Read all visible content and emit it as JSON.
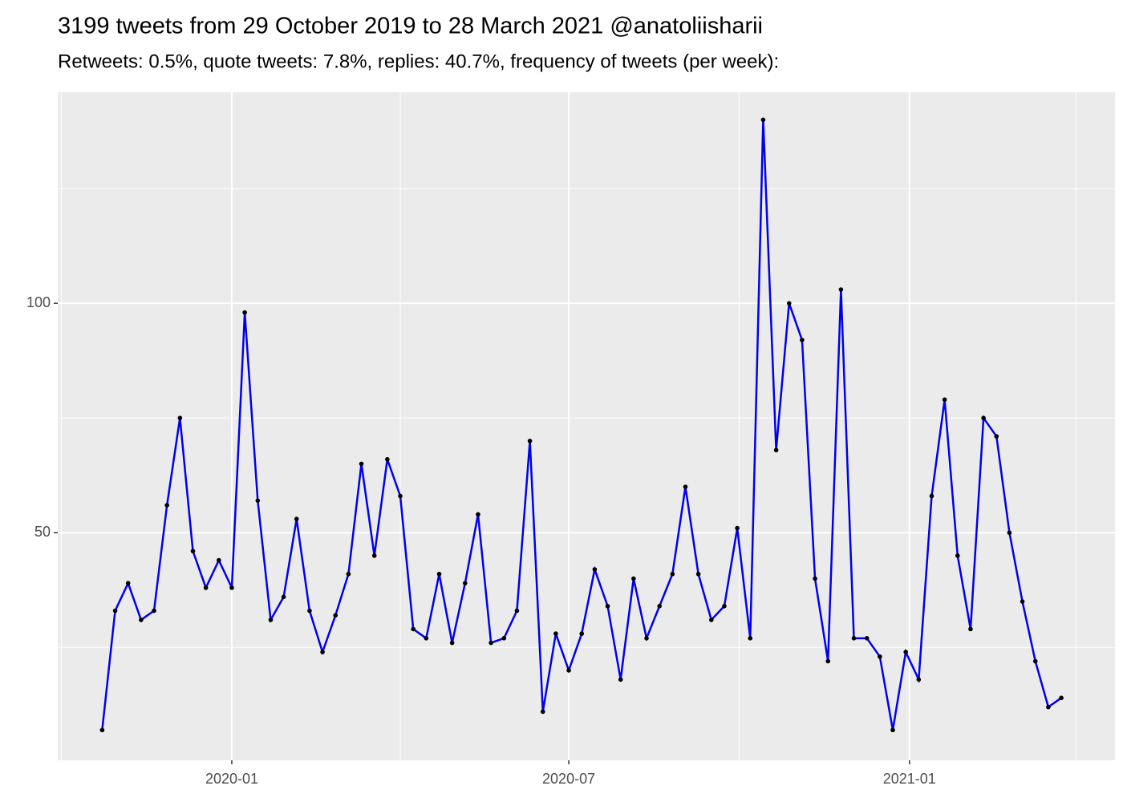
{
  "chart_data": {
    "type": "line",
    "title": "3199 tweets from 29 October 2019 to 28 March 2021 @anatoliisharii",
    "subtitle": "Retweets: 0.5%, quote tweets: 7.8%, replies: 40.7%, frequency of tweets (per week):",
    "x": [
      "2019-10-23",
      "2019-10-30",
      "2019-11-06",
      "2019-11-13",
      "2019-11-20",
      "2019-11-27",
      "2019-12-04",
      "2019-12-11",
      "2019-12-18",
      "2019-12-25",
      "2020-01-01",
      "2020-01-08",
      "2020-01-15",
      "2020-01-22",
      "2020-01-29",
      "2020-02-05",
      "2020-02-12",
      "2020-02-19",
      "2020-02-26",
      "2020-03-04",
      "2020-03-11",
      "2020-03-18",
      "2020-03-25",
      "2020-04-01",
      "2020-04-08",
      "2020-04-15",
      "2020-04-22",
      "2020-04-29",
      "2020-05-06",
      "2020-05-13",
      "2020-05-20",
      "2020-05-27",
      "2020-06-03",
      "2020-06-10",
      "2020-06-17",
      "2020-06-24",
      "2020-07-01",
      "2020-07-08",
      "2020-07-15",
      "2020-07-22",
      "2020-07-29",
      "2020-08-05",
      "2020-08-12",
      "2020-08-19",
      "2020-08-26",
      "2020-09-02",
      "2020-09-09",
      "2020-09-16",
      "2020-09-23",
      "2020-09-30",
      "2020-10-07",
      "2020-10-14",
      "2020-10-21",
      "2020-10-28",
      "2020-11-04",
      "2020-11-11",
      "2020-11-18",
      "2020-11-25",
      "2020-12-02",
      "2020-12-09",
      "2020-12-16",
      "2020-12-23",
      "2020-12-30",
      "2021-01-06",
      "2021-01-13",
      "2021-01-20",
      "2021-01-27",
      "2021-02-03",
      "2021-02-10",
      "2021-02-17",
      "2021-02-24",
      "2021-03-03",
      "2021-03-10",
      "2021-03-17",
      "2021-03-24"
    ],
    "series": [
      {
        "color": "#0000ee",
        "values": [
          7,
          33,
          39,
          31,
          33,
          56,
          75,
          46,
          38,
          44,
          38,
          98,
          57,
          31,
          36,
          53,
          33,
          24,
          32,
          41,
          65,
          45,
          66,
          58,
          29,
          27,
          41,
          26,
          39,
          54,
          26,
          27,
          33,
          70,
          11,
          28,
          20,
          28,
          42,
          34,
          18,
          40,
          27,
          34,
          41,
          60,
          41,
          31,
          34,
          51,
          27,
          140,
          68,
          100,
          92,
          40,
          22,
          103,
          27,
          27,
          23,
          7,
          24,
          18,
          58,
          79,
          45,
          29,
          75,
          71,
          50,
          35,
          22,
          12,
          14
        ]
      }
    ],
    "xlim": [
      "2019-09-29",
      "2021-04-22"
    ],
    "xticks": [
      {
        "value": "2020-01-01",
        "label": "2020-01"
      },
      {
        "value": "2020-07-01",
        "label": "2020-07"
      },
      {
        "value": "2021-01-01",
        "label": "2021-01"
      }
    ],
    "xminor": [
      "2019-10-01",
      "2020-04-01",
      "2020-10-01",
      "2021-04-01"
    ],
    "ylim": [
      0.4,
      146
    ],
    "yticks": [
      50,
      100
    ],
    "yminor": [
      25,
      75,
      125
    ],
    "grid": true
  }
}
